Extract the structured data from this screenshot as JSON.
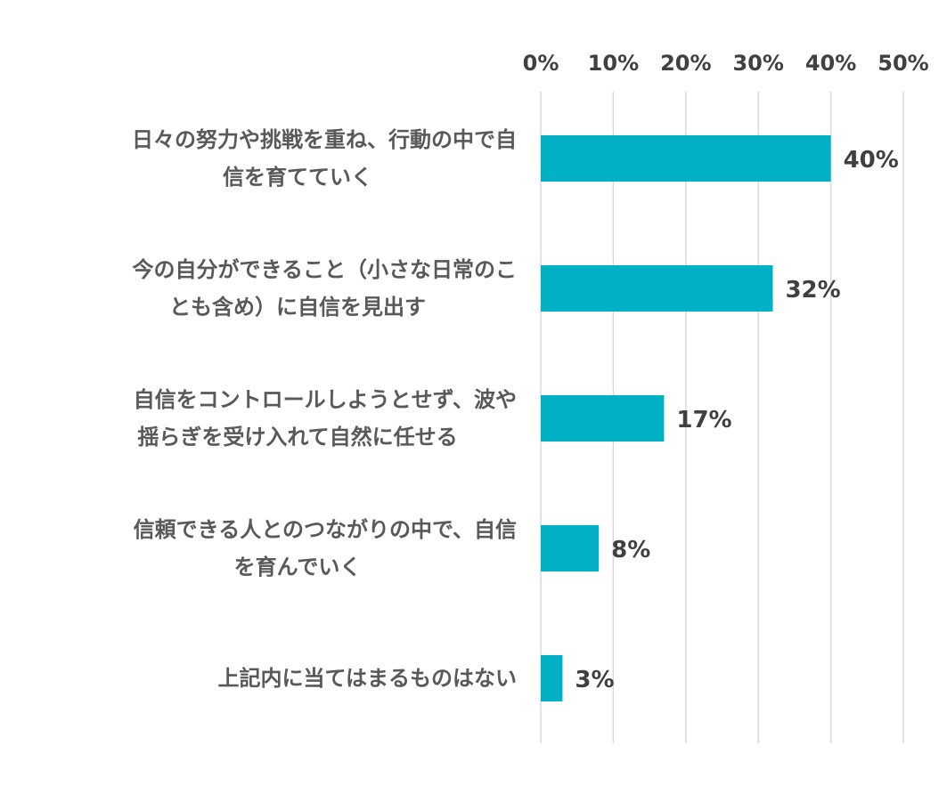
{
  "chart_data": {
    "type": "bar",
    "orientation": "horizontal",
    "categories": [
      [
        "日々の努力や挑戦を重ね、行動の中で自",
        "信を育てていく"
      ],
      [
        "今の自分ができること（小さな日常のこ",
        "とも含め）に自信を見出す"
      ],
      [
        "自信をコントロールしようとせず、波や",
        "揺らぎを受け入れて自然に任せる"
      ],
      [
        "信頼できる人とのつながりの中で、自信",
        "を育んでいく"
      ],
      [
        "上記内に当てはまるものはない"
      ]
    ],
    "values": [
      40,
      32,
      17,
      8,
      3
    ],
    "data_labels": [
      "40%",
      "32%",
      "17%",
      "8%",
      "3%"
    ],
    "xlim": [
      0,
      50
    ],
    "ticks": [
      0,
      10,
      20,
      30,
      40,
      50
    ],
    "tick_labels": [
      "0%",
      "10%",
      "20%",
      "30%",
      "40%",
      "50%"
    ],
    "axis_position": "top",
    "grid": true,
    "bar_color": "#00b0c4",
    "grid_color": "#d9d9d9",
    "title": "",
    "xlabel": "",
    "ylabel": ""
  }
}
